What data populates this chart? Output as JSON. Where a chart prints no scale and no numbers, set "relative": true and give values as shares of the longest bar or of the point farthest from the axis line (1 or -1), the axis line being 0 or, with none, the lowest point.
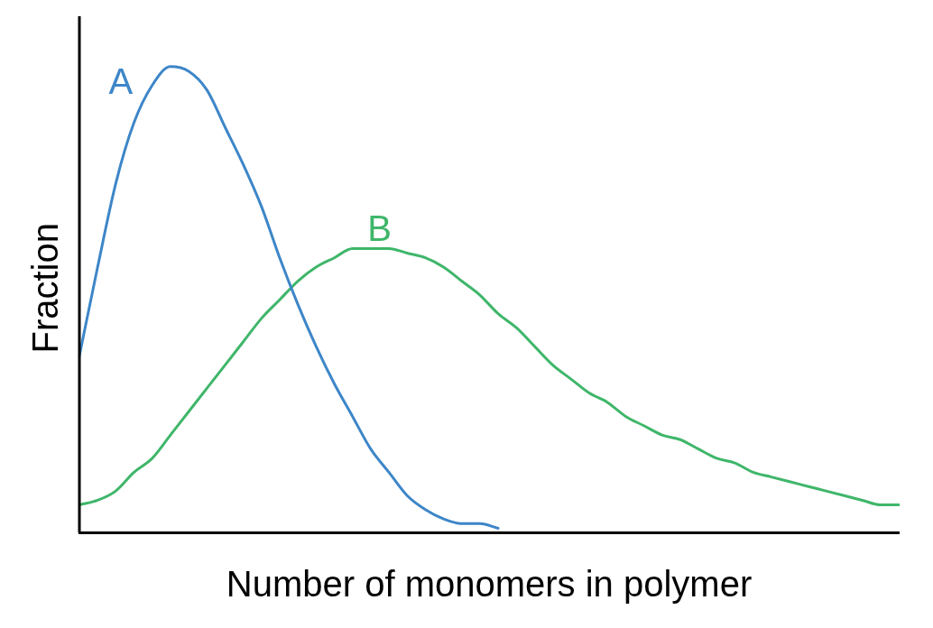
{
  "chart_data": {
    "type": "line",
    "relative": true,
    "xlabel": "Number of monomers in polymer",
    "ylabel": "Fraction",
    "categories": [
      null,
      null,
      null,
      null,
      null,
      null,
      null,
      null,
      null,
      null,
      null,
      null,
      null,
      null,
      null,
      null,
      null,
      null,
      null,
      null,
      null,
      null,
      null,
      null,
      null,
      null,
      null,
      null,
      null,
      null,
      null,
      null,
      null,
      null,
      null,
      null,
      null,
      null,
      null,
      null,
      null,
      null,
      null,
      null,
      null,
      null
    ],
    "grid": false,
    "legend": false,
    "marker": "none",
    "line_style": "solid",
    "series": [
      {
        "name": "A",
        "color": "#3d86c8",
        "values": [
          0.38,
          0.57,
          0.75,
          0.88,
          0.96,
          1,
          0.99,
          0.95,
          0.87,
          0.79,
          0.7,
          0.59,
          0.49,
          0.4,
          0.32,
          0.25,
          0.18,
          0.13,
          0.08,
          0.05,
          0.03,
          0.02,
          0.02,
          0.01,
          null,
          null,
          null,
          null,
          null,
          null,
          null,
          null,
          null,
          null,
          null,
          null,
          null,
          null,
          null,
          null,
          null,
          null,
          null,
          null,
          null,
          null
        ]
      },
      {
        "name": "B",
        "color": "#3fb66a",
        "values": [
          0.06,
          0.07,
          0.09,
          0.13,
          0.16,
          0.21,
          0.26,
          0.31,
          0.36,
          0.41,
          0.46,
          0.5,
          0.54,
          0.57,
          0.59,
          0.61,
          0.61,
          0.61,
          0.6,
          0.59,
          0.57,
          0.54,
          0.51,
          0.47,
          0.44,
          0.4,
          0.36,
          0.33,
          0.3,
          0.28,
          0.25,
          0.23,
          0.21,
          0.2,
          0.18,
          0.16,
          0.15,
          0.13,
          0.12,
          0.11,
          0.1,
          0.09,
          0.08,
          0.07,
          0.06,
          0.06
        ]
      }
    ]
  }
}
